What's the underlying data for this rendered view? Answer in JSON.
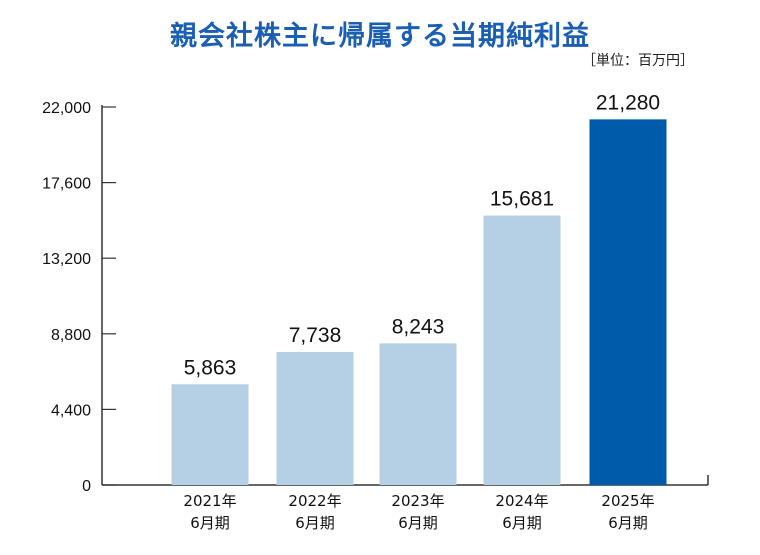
{
  "chart_data": {
    "type": "bar",
    "title": "親会社株主に帰属する当期純利益",
    "unit_note": "［単位：百万円］",
    "categories": [
      [
        "2021年",
        "6月期"
      ],
      [
        "2022年",
        "6月期"
      ],
      [
        "2023年",
        "6月期"
      ],
      [
        "2024年",
        "6月期"
      ],
      [
        "2025年",
        "6月期"
      ]
    ],
    "values": [
      5863,
      7738,
      8243,
      15681,
      21280
    ],
    "value_labels": [
      "5,863",
      "7,738",
      "8,243",
      "15,681",
      "21,280"
    ],
    "yticks": [
      0,
      4400,
      8800,
      13200,
      17600,
      22000
    ],
    "ytick_labels": [
      "0",
      "4,400",
      "8,800",
      "13,200",
      "17,600",
      "22,000"
    ],
    "ylim": [
      0,
      22000
    ],
    "grid": false,
    "colors": {
      "bar": "#b5cfe4",
      "highlight_bar": "#005baa",
      "title": "#1a5fb4",
      "axis": "#333333"
    },
    "highlight_index": 4
  }
}
